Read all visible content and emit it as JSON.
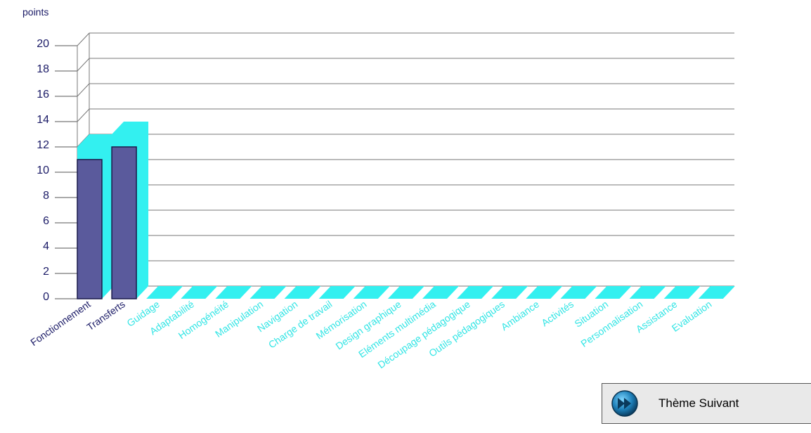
{
  "chart_data": {
    "type": "bar",
    "ylabel": "points",
    "ylim": [
      0,
      20
    ],
    "yticks": [
      0,
      2,
      4,
      6,
      8,
      10,
      12,
      14,
      16,
      18,
      20
    ],
    "categories": [
      "Fonctionnement",
      "Transferts",
      "Guidage",
      "Adaptabilité",
      "Homogénéité",
      "Manipulation",
      "Navigation",
      "Charge de travail",
      "Mémorisation",
      "Design graphique",
      "Eléments multimédia",
      "Découpage pédagogique",
      "Outils pédagogiques",
      "Ambiance",
      "Activités",
      "Situation",
      "Personnalisation",
      "Assistance",
      "Evaluation"
    ],
    "values": [
      11,
      12,
      0,
      0,
      0,
      0,
      0,
      0,
      0,
      0,
      0,
      0,
      0,
      0,
      0,
      0,
      0,
      0,
      0
    ],
    "back_values": [
      12,
      13,
      0,
      0,
      0,
      0,
      0,
      0,
      0,
      0,
      0,
      0,
      0,
      0,
      0,
      0,
      0,
      0,
      0
    ],
    "grid": true,
    "colors": {
      "front": "#5a5a9c",
      "back": "#33f0f0",
      "label_filled": "#1a1a66",
      "label_empty": "#33e5e5"
    }
  },
  "button": {
    "label": "Thème Suivant",
    "icon": "fast-forward-icon"
  }
}
